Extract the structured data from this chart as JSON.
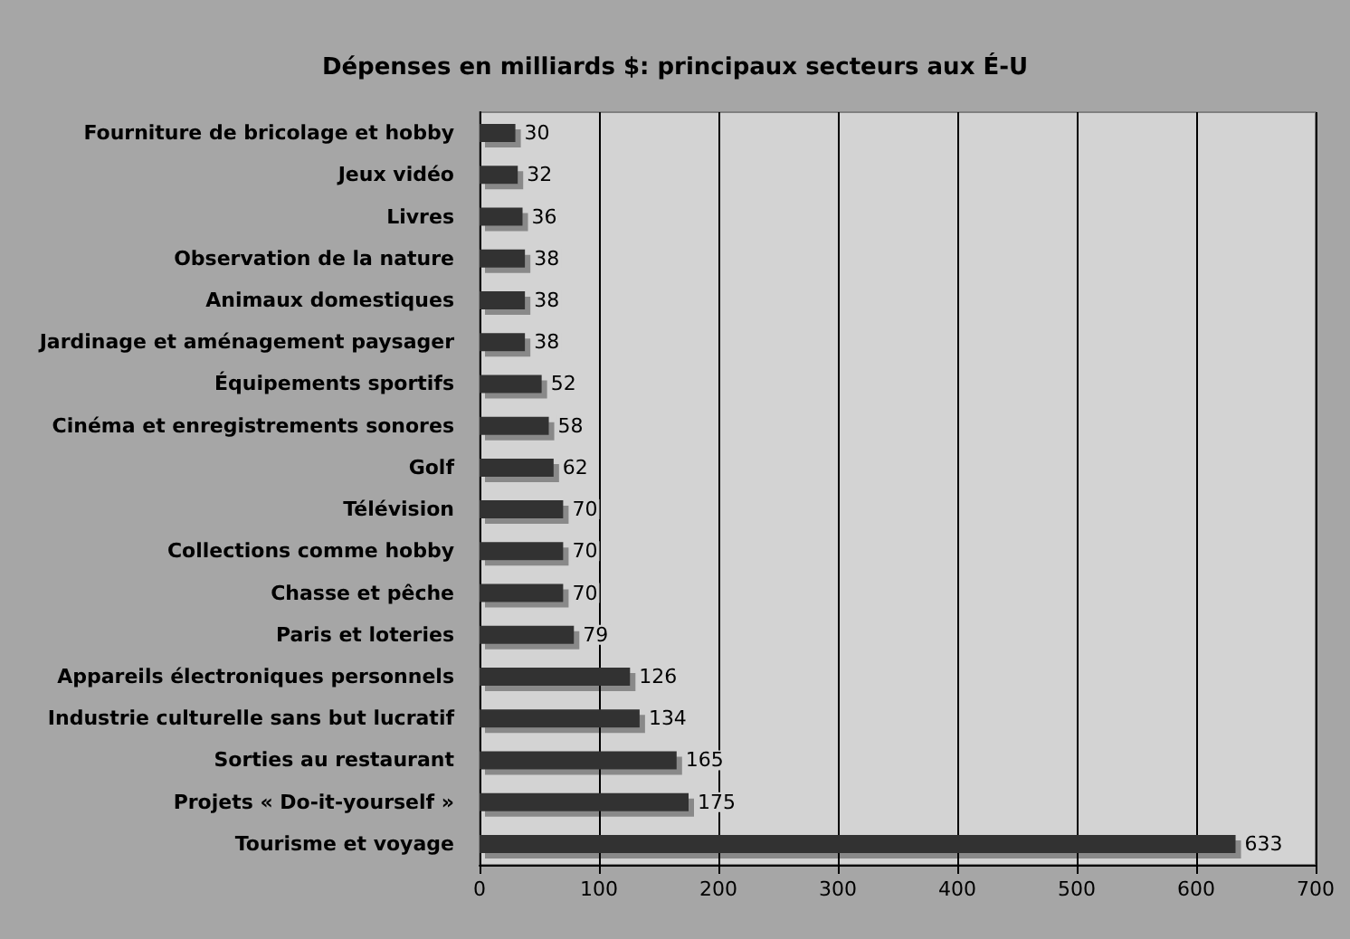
{
  "chart_data": {
    "type": "bar",
    "orientation": "horizontal",
    "title": "Dépenses en milliards $: principaux secteurs aux É-U",
    "categories": [
      "Fourniture de bricolage et hobby",
      "Jeux vidéo",
      "Livres",
      "Observation de la nature",
      "Animaux domestiques",
      "Jardinage et aménagement paysager",
      "Équipements sportifs",
      "Cinéma et enregistrements sonores",
      "Golf",
      "Télévision",
      "Collections comme hobby",
      "Chasse et pêche",
      "Paris et loteries",
      "Appareils électroniques personnels",
      "Industrie culturelle sans but lucratif",
      "Sorties au restaurant",
      "Projets « Do-it-yourself »",
      "Tourisme et voyage"
    ],
    "values": [
      30,
      32,
      36,
      38,
      38,
      38,
      52,
      58,
      62,
      70,
      70,
      70,
      79,
      126,
      134,
      165,
      175,
      633
    ],
    "color": "#333333",
    "xlim": [
      0,
      700
    ],
    "xticks": [
      0,
      100,
      200,
      300,
      400,
      500,
      600,
      700
    ],
    "grid": "x",
    "data_labels": true
  }
}
